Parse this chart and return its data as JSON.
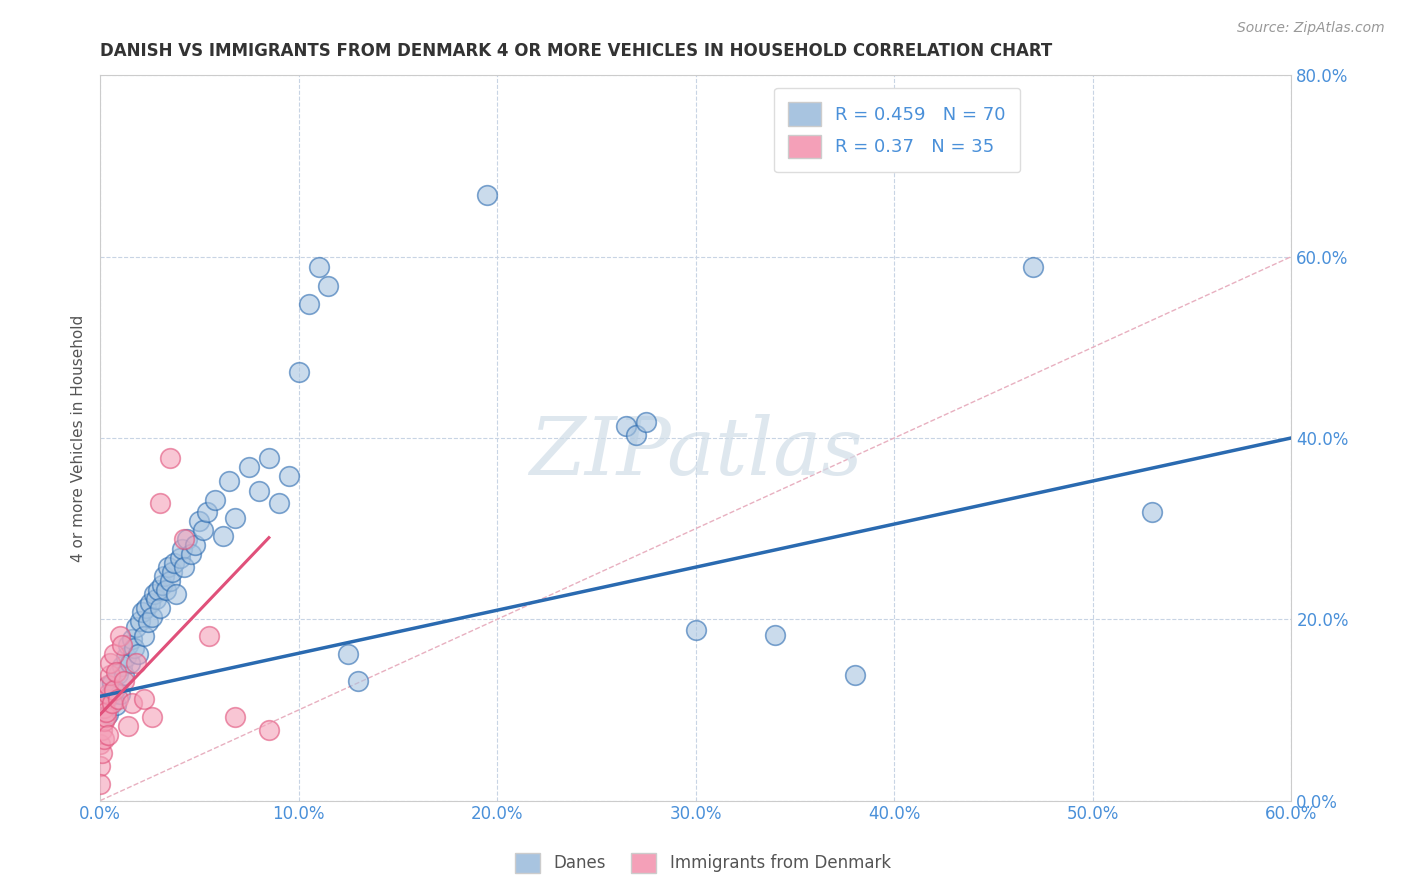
{
  "title": "DANISH VS IMMIGRANTS FROM DENMARK 4 OR MORE VEHICLES IN HOUSEHOLD CORRELATION CHART",
  "source": "Source: ZipAtlas.com",
  "ylabel": "4 or more Vehicles in Household",
  "watermark": "ZIPatlas",
  "xlim": [
    0.0,
    0.6
  ],
  "ylim": [
    0.0,
    0.8
  ],
  "xticks": [
    0.0,
    0.1,
    0.2,
    0.3,
    0.4,
    0.5,
    0.6
  ],
  "yticks": [
    0.0,
    0.2,
    0.4,
    0.6,
    0.8
  ],
  "danes_R": 0.459,
  "danes_N": 70,
  "immigrants_R": 0.37,
  "immigrants_N": 35,
  "legend_labels": [
    "Danes",
    "Immigrants from Denmark"
  ],
  "danes_color": "#a8c4e0",
  "danes_line_color": "#2a6ab0",
  "immigrants_color": "#f4a0b8",
  "immigrants_line_color": "#e0507a",
  "background_color": "#ffffff",
  "grid_color": "#c8d4e4",
  "axis_label_color": "#4a90d9",
  "title_color": "#333333",
  "danes_scatter": [
    [
      0.002,
      0.11
    ],
    [
      0.003,
      0.125
    ],
    [
      0.004,
      0.095
    ],
    [
      0.005,
      0.115
    ],
    [
      0.006,
      0.13
    ],
    [
      0.007,
      0.12
    ],
    [
      0.008,
      0.105
    ],
    [
      0.009,
      0.14
    ],
    [
      0.01,
      0.118
    ],
    [
      0.011,
      0.148
    ],
    [
      0.012,
      0.138
    ],
    [
      0.013,
      0.158
    ],
    [
      0.014,
      0.172
    ],
    [
      0.015,
      0.152
    ],
    [
      0.016,
      0.178
    ],
    [
      0.017,
      0.168
    ],
    [
      0.018,
      0.192
    ],
    [
      0.019,
      0.162
    ],
    [
      0.02,
      0.198
    ],
    [
      0.021,
      0.208
    ],
    [
      0.022,
      0.182
    ],
    [
      0.023,
      0.212
    ],
    [
      0.024,
      0.197
    ],
    [
      0.025,
      0.218
    ],
    [
      0.026,
      0.202
    ],
    [
      0.027,
      0.228
    ],
    [
      0.028,
      0.222
    ],
    [
      0.029,
      0.232
    ],
    [
      0.03,
      0.212
    ],
    [
      0.031,
      0.238
    ],
    [
      0.032,
      0.248
    ],
    [
      0.033,
      0.232
    ],
    [
      0.034,
      0.258
    ],
    [
      0.035,
      0.242
    ],
    [
      0.036,
      0.252
    ],
    [
      0.037,
      0.262
    ],
    [
      0.038,
      0.228
    ],
    [
      0.04,
      0.268
    ],
    [
      0.041,
      0.278
    ],
    [
      0.042,
      0.258
    ],
    [
      0.044,
      0.288
    ],
    [
      0.046,
      0.272
    ],
    [
      0.048,
      0.282
    ],
    [
      0.05,
      0.308
    ],
    [
      0.052,
      0.298
    ],
    [
      0.054,
      0.318
    ],
    [
      0.058,
      0.332
    ],
    [
      0.062,
      0.292
    ],
    [
      0.065,
      0.352
    ],
    [
      0.068,
      0.312
    ],
    [
      0.075,
      0.368
    ],
    [
      0.08,
      0.342
    ],
    [
      0.085,
      0.378
    ],
    [
      0.09,
      0.328
    ],
    [
      0.095,
      0.358
    ],
    [
      0.1,
      0.473
    ],
    [
      0.105,
      0.548
    ],
    [
      0.11,
      0.588
    ],
    [
      0.115,
      0.568
    ],
    [
      0.125,
      0.162
    ],
    [
      0.13,
      0.132
    ],
    [
      0.195,
      0.668
    ],
    [
      0.265,
      0.413
    ],
    [
      0.27,
      0.403
    ],
    [
      0.275,
      0.418
    ],
    [
      0.3,
      0.188
    ],
    [
      0.34,
      0.183
    ],
    [
      0.38,
      0.138
    ],
    [
      0.47,
      0.588
    ],
    [
      0.53,
      0.318
    ]
  ],
  "immigrants_scatter": [
    [
      0.0,
      0.038
    ],
    [
      0.0,
      0.062
    ],
    [
      0.0,
      0.018
    ],
    [
      0.001,
      0.078
    ],
    [
      0.001,
      0.052
    ],
    [
      0.002,
      0.068
    ],
    [
      0.002,
      0.088
    ],
    [
      0.002,
      0.102
    ],
    [
      0.003,
      0.112
    ],
    [
      0.003,
      0.092
    ],
    [
      0.003,
      0.098
    ],
    [
      0.004,
      0.118
    ],
    [
      0.004,
      0.128
    ],
    [
      0.004,
      0.072
    ],
    [
      0.005,
      0.138
    ],
    [
      0.005,
      0.152
    ],
    [
      0.006,
      0.108
    ],
    [
      0.007,
      0.122
    ],
    [
      0.007,
      0.162
    ],
    [
      0.008,
      0.142
    ],
    [
      0.009,
      0.112
    ],
    [
      0.01,
      0.182
    ],
    [
      0.011,
      0.172
    ],
    [
      0.012,
      0.132
    ],
    [
      0.014,
      0.082
    ],
    [
      0.016,
      0.108
    ],
    [
      0.018,
      0.152
    ],
    [
      0.022,
      0.112
    ],
    [
      0.026,
      0.092
    ],
    [
      0.03,
      0.328
    ],
    [
      0.035,
      0.378
    ],
    [
      0.042,
      0.288
    ],
    [
      0.055,
      0.182
    ],
    [
      0.068,
      0.092
    ],
    [
      0.085,
      0.078
    ]
  ],
  "danes_trendline": [
    [
      0.0,
      0.115
    ],
    [
      0.6,
      0.4
    ]
  ],
  "immigrants_trendline": [
    [
      0.0,
      0.095
    ],
    [
      0.085,
      0.29
    ]
  ]
}
